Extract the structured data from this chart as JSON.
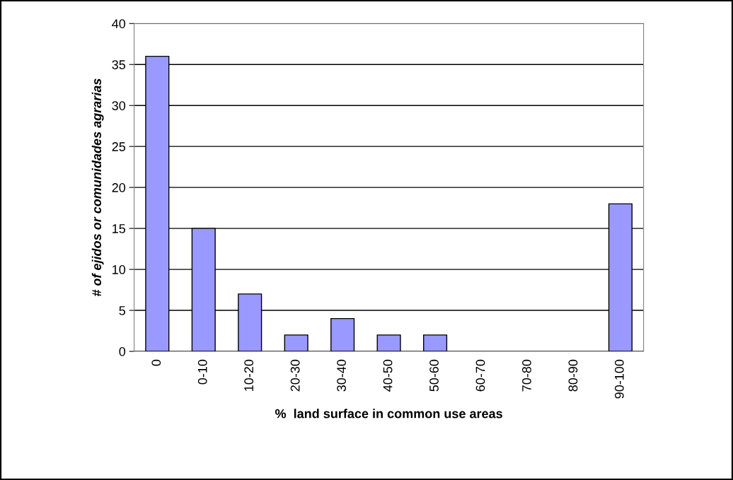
{
  "chart_data": {
    "type": "bar",
    "xlabel": "%  land surface in common use areas",
    "ylabel": "# of ejidos or comunidades agrarias",
    "categories": [
      "0",
      "0-10",
      "10-20",
      "20-30",
      "30-40",
      "40-50",
      "50-60",
      "60-70",
      "70-80",
      "80-90",
      "90-100"
    ],
    "values": [
      36,
      15,
      7,
      2,
      4,
      2,
      2,
      0,
      0,
      0,
      18
    ],
    "color": "#9999ff",
    "ylim": [
      0,
      40
    ],
    "yticks": [
      0,
      5,
      10,
      15,
      20,
      25,
      30,
      35,
      40
    ],
    "grid": "y"
  }
}
